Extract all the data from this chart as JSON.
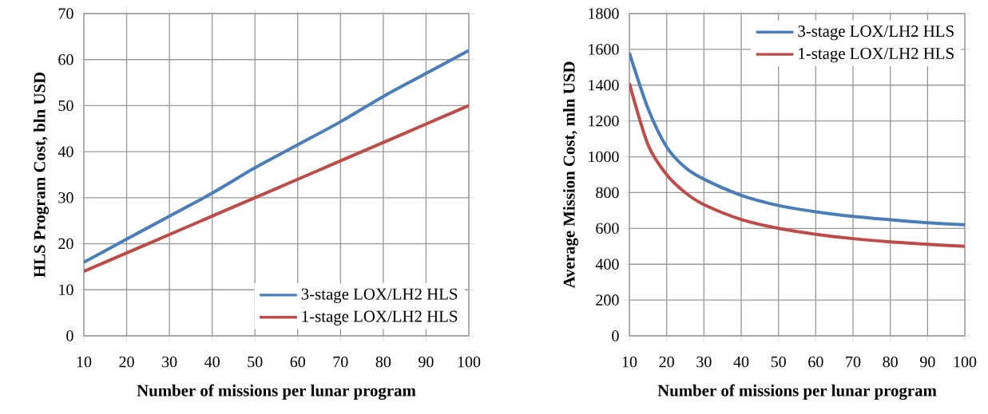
{
  "chart_data": [
    {
      "type": "line",
      "xlabel": "Number of missions per lunar program",
      "ylabel": "HLS Program Cost, bln USD",
      "x": [
        10,
        20,
        30,
        40,
        50,
        60,
        70,
        80,
        90,
        100
      ],
      "series": [
        {
          "name": "3-stage LOX/LH2 HLS",
          "color": "#4a7ebb",
          "values": [
            16,
            21,
            26,
            31,
            36.5,
            41.5,
            46.5,
            52,
            57,
            62
          ]
        },
        {
          "name": "1-stage LOX/LH2 HLS",
          "color": "#be4b48",
          "values": [
            14,
            18,
            22,
            26,
            30,
            34,
            38,
            42,
            46,
            50
          ]
        }
      ],
      "xlim": [
        10,
        100
      ],
      "xticks": [
        10,
        20,
        30,
        40,
        50,
        60,
        70,
        80,
        90,
        100
      ],
      "ylim": [
        0,
        70
      ],
      "yticks": [
        0,
        10,
        20,
        30,
        40,
        50,
        60,
        70
      ],
      "grid": true,
      "legend": "bottom right"
    },
    {
      "type": "line",
      "xlabel": "Number of missions per lunar program",
      "ylabel": "Average Mission Cost, mln USD",
      "x": [
        10,
        15,
        20,
        25,
        30,
        40,
        50,
        60,
        70,
        80,
        90,
        100
      ],
      "series": [
        {
          "name": "3-stage LOX/LH2 HLS",
          "color": "#4a7ebb",
          "values": [
            1580,
            1270,
            1055,
            940,
            875,
            785,
            728,
            693,
            667,
            648,
            632,
            620
          ]
        },
        {
          "name": "1-stage LOX/LH2 HLS",
          "color": "#be4b48",
          "values": [
            1410,
            1067,
            900,
            800,
            733,
            650,
            600,
            567,
            543,
            525,
            511,
            500
          ]
        }
      ],
      "xlim": [
        10,
        100
      ],
      "xticks": [
        10,
        20,
        30,
        40,
        50,
        60,
        70,
        80,
        90,
        100
      ],
      "ylim": [
        0,
        1800
      ],
      "yticks": [
        0,
        200,
        400,
        600,
        800,
        1000,
        1200,
        1400,
        1600,
        1800
      ],
      "grid": true,
      "legend": "top right"
    }
  ]
}
